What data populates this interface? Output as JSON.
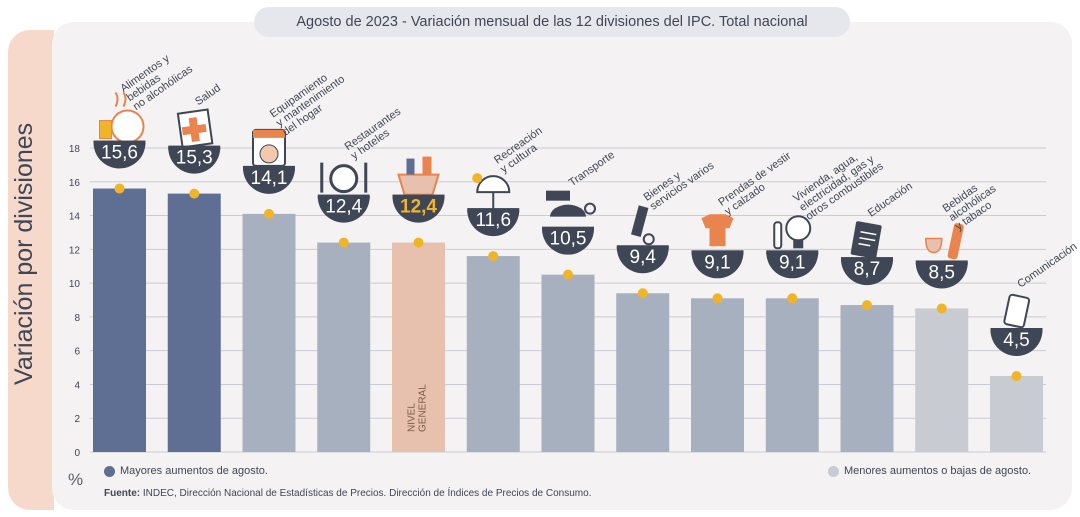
{
  "chart_data": {
    "type": "bar",
    "title": "Agosto de 2023 - Variación mensual de las 12 divisiones del IPC. Total nacional",
    "ylabel": "Variación por divisiones",
    "unit": "%",
    "ylim": [
      0,
      18
    ],
    "yticks": [
      "0",
      "2",
      "4",
      "6",
      "8",
      "10",
      "12",
      "14",
      "16",
      "18"
    ],
    "grid": true,
    "categories": [
      [
        "Alimentos y",
        "bebidas",
        "no alcohólicas"
      ],
      [
        "Salud"
      ],
      [
        "Equipamiento",
        "y mantenimiento",
        "del hogar"
      ],
      [
        "Restaurantes",
        "y hoteles"
      ],
      [],
      [
        "Recreación",
        "y cultura"
      ],
      [
        "Transporte"
      ],
      [
        "Bienes y",
        "servicios varios"
      ],
      [
        "Prendas de vestir",
        "y calzado"
      ],
      [
        "Vivienda, agua,",
        "electricidad, gas y",
        "otros combustibles"
      ],
      [
        "Educación"
      ],
      [
        "Bebidas",
        "alcohólicas",
        "y tabaco"
      ],
      [
        "Comunicación"
      ]
    ],
    "values": [
      15.6,
      15.3,
      14.1,
      12.4,
      12.4,
      11.6,
      10.5,
      9.4,
      9.1,
      9.1,
      8.7,
      8.5,
      4.5
    ],
    "value_labels": [
      "15,6",
      "15,3",
      "14,1",
      "12,4",
      "12,4",
      "11,6",
      "10,5",
      "9,4",
      "9,1",
      "9,1",
      "8,7",
      "8,5",
      "4,5"
    ],
    "icons": [
      "food-icon",
      "health-icon",
      "appliance-icon",
      "restaurant-icon",
      "basket-icon",
      "recreation-icon",
      "transport-icon",
      "scissors-icon",
      "clothing-icon",
      "bulb-icon",
      "notebook-icon",
      "wine-icon",
      "phone-icon"
    ],
    "general_label": [
      "NIVEL",
      "GENERAL"
    ],
    "colors": {
      "mayores": "#5f6f93",
      "general": "#e7c1ad",
      "intermedio": "#a7b0bf",
      "menores": "#c8cbd1",
      "badge": "#3f4655",
      "marker": "#f0b429",
      "general_value": "#f0b429"
    },
    "bar_groups": [
      "mayores",
      "mayores",
      "intermedio",
      "intermedio",
      "general",
      "intermedio",
      "intermedio",
      "intermedio",
      "intermedio",
      "intermedio",
      "intermedio",
      "menores",
      "menores"
    ]
  },
  "legend": {
    "mayores": "Mayores aumentos de agosto.",
    "menores": "Menores aumentos o bajas de agosto."
  },
  "source": {
    "label": "Fuente:",
    "text": "INDEC, Dirección Nacional de Estadísticas de Precios. Dirección de Índices de Precios de Consumo."
  }
}
